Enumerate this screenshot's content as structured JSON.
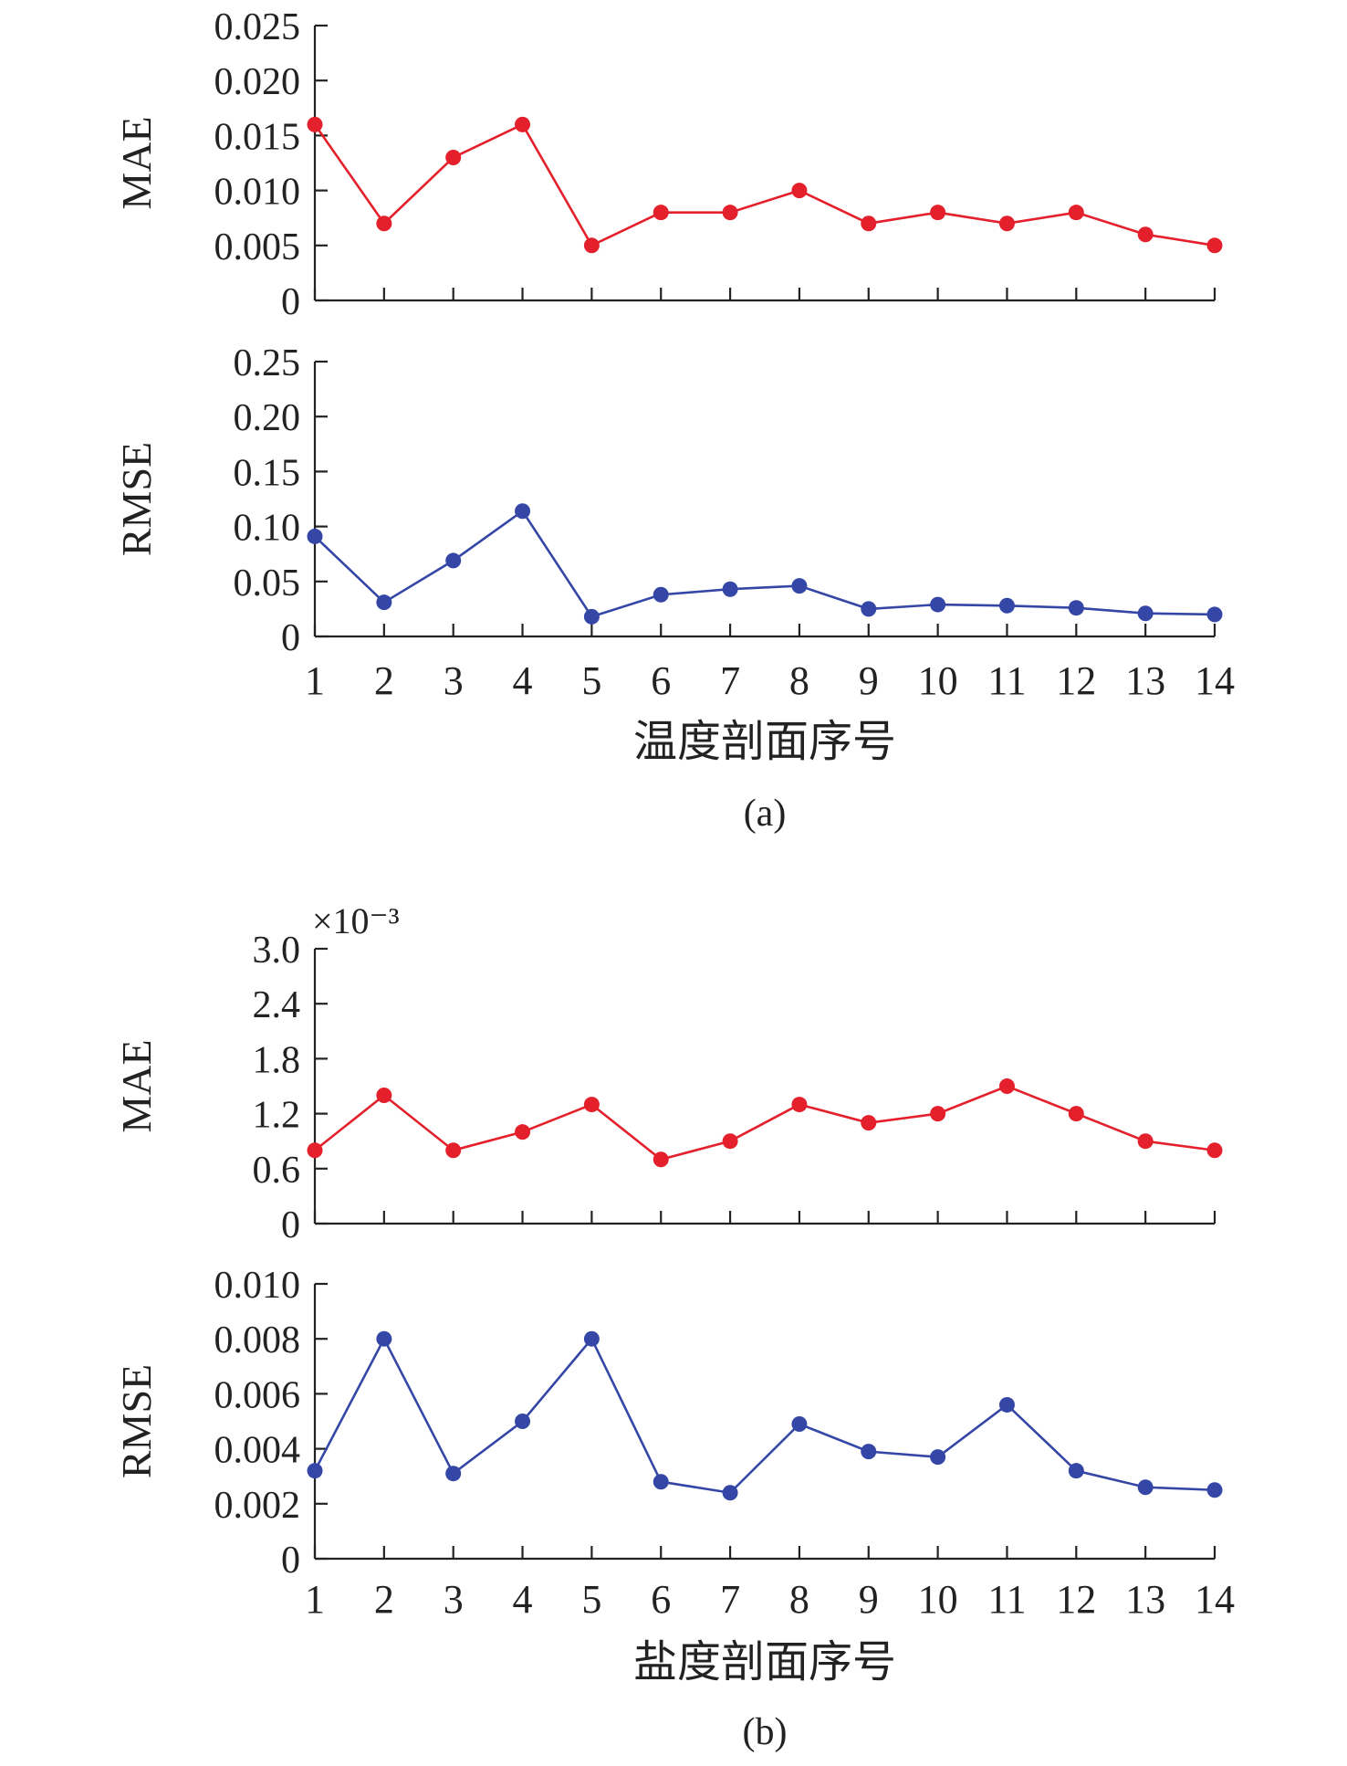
{
  "colors": {
    "mae": "#e3202b",
    "rmse": "#3547a6",
    "axis": "#222222"
  },
  "panels": [
    {
      "caption": "(a)",
      "xlabel": "温度剖面序号",
      "exponent_label": "",
      "categories": [
        "1",
        "2",
        "3",
        "4",
        "5",
        "6",
        "7",
        "8",
        "9",
        "10",
        "11",
        "12",
        "13",
        "14"
      ]
    },
    {
      "caption": "(b)",
      "xlabel": "盐度剖面序号",
      "exponent_label": "×10⁻³",
      "categories": [
        "1",
        "2",
        "3",
        "4",
        "5",
        "6",
        "7",
        "8",
        "9",
        "10",
        "11",
        "12",
        "13",
        "14"
      ]
    }
  ],
  "chart_data": [
    {
      "type": "line",
      "panel": "(a)",
      "ylabel": "MAE",
      "ylim": [
        0,
        0.025
      ],
      "yticks": [
        "0",
        "0.005",
        "0.010",
        "0.015",
        "0.020",
        "0.025"
      ],
      "x": [
        1,
        2,
        3,
        4,
        5,
        6,
        7,
        8,
        9,
        10,
        11,
        12,
        13,
        14
      ],
      "values": [
        0.016,
        0.007,
        0.013,
        0.016,
        0.005,
        0.008,
        0.008,
        0.01,
        0.007,
        0.008,
        0.007,
        0.008,
        0.006,
        0.005
      ],
      "color": "#e3202b",
      "grid": false
    },
    {
      "type": "line",
      "panel": "(a)",
      "ylabel": "RMSE",
      "ylim": [
        0,
        0.25
      ],
      "yticks": [
        "0",
        "0.05",
        "0.10",
        "0.15",
        "0.20",
        "0.25"
      ],
      "x": [
        1,
        2,
        3,
        4,
        5,
        6,
        7,
        8,
        9,
        10,
        11,
        12,
        13,
        14
      ],
      "values": [
        0.091,
        0.031,
        0.069,
        0.114,
        0.018,
        0.038,
        0.043,
        0.046,
        0.025,
        0.029,
        0.028,
        0.026,
        0.021,
        0.02
      ],
      "color": "#3547a6",
      "grid": false
    },
    {
      "type": "line",
      "panel": "(b)",
      "ylabel": "MAE",
      "ylim": [
        0,
        3.0
      ],
      "yticks": [
        "0",
        "0.6",
        "1.2",
        "1.8",
        "2.4",
        "3.0"
      ],
      "scale_note": "×10⁻³",
      "x": [
        1,
        2,
        3,
        4,
        5,
        6,
        7,
        8,
        9,
        10,
        11,
        12,
        13,
        14
      ],
      "values": [
        0.8,
        1.4,
        0.8,
        1.0,
        1.3,
        0.7,
        0.9,
        1.3,
        1.1,
        1.2,
        1.5,
        1.2,
        0.9,
        0.8
      ],
      "color": "#e3202b",
      "grid": false
    },
    {
      "type": "line",
      "panel": "(b)",
      "ylabel": "RMSE",
      "ylim": [
        0,
        0.01
      ],
      "yticks": [
        "0",
        "0.002",
        "0.004",
        "0.006",
        "0.008",
        "0.010"
      ],
      "x": [
        1,
        2,
        3,
        4,
        5,
        6,
        7,
        8,
        9,
        10,
        11,
        12,
        13,
        14
      ],
      "values": [
        0.0032,
        0.008,
        0.0031,
        0.005,
        0.008,
        0.0028,
        0.0024,
        0.0049,
        0.0039,
        0.0037,
        0.0056,
        0.0032,
        0.0026,
        0.0025
      ],
      "color": "#3547a6",
      "grid": false
    }
  ]
}
